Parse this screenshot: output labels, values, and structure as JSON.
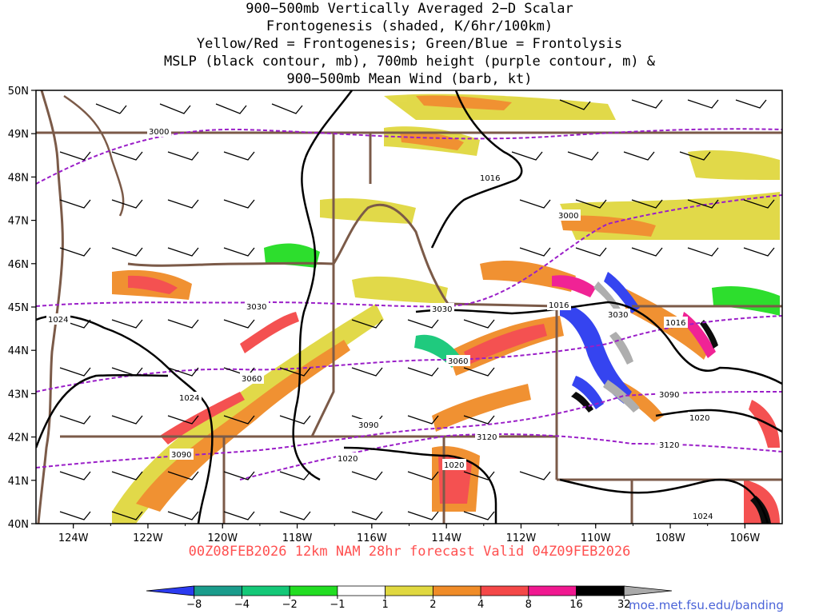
{
  "title_lines": [
    "900−500mb Vertically Averaged 2−D Scalar",
    "Frontogenesis (shaded, K/6hr/100km)",
    "Yellow/Red = Frontogenesis;  Green/Blue = Frontolysis",
    "MSLP (black contour, mb), 700mb height (purple contour, m) &",
    "900−500mb Mean Wind (barb, kt)"
  ],
  "forecast_line": "00Z08FEB2026 12km NAM 28hr forecast Valid 04Z09FEB2026",
  "credit": "moe.met.fsu.edu/banding",
  "map": {
    "lon_range": [
      -125,
      -105
    ],
    "lat_range": [
      40,
      50
    ],
    "lat_labels": [
      "50N",
      "49N",
      "48N",
      "47N",
      "46N",
      "45N",
      "44N",
      "43N",
      "42N",
      "41N",
      "40N"
    ],
    "lon_labels": [
      "124W",
      "122W",
      "120W",
      "118W",
      "116W",
      "114W",
      "112W",
      "110W",
      "108W",
      "106W"
    ],
    "mslp_labels": [
      "1016",
      "1016",
      "1016",
      "1020",
      "1020",
      "1020",
      "1024",
      "1024",
      "1024"
    ],
    "height_labels": [
      "3000",
      "3000",
      "3030",
      "3030",
      "3030",
      "3060",
      "3060",
      "3090",
      "3090",
      "3090",
      "3120",
      "3120"
    ]
  },
  "colorbar": {
    "labels": [
      "−8",
      "−4",
      "−2",
      "−1",
      "1",
      "2",
      "4",
      "8",
      "16",
      "32"
    ],
    "colors": [
      "#2b3bf0",
      "#1a9c8c",
      "#14c878",
      "#22dd22",
      "#ffffff",
      "#e0d840",
      "#f08c28",
      "#f44848",
      "#f01890",
      "#000000",
      "#aaaaaa"
    ]
  }
}
